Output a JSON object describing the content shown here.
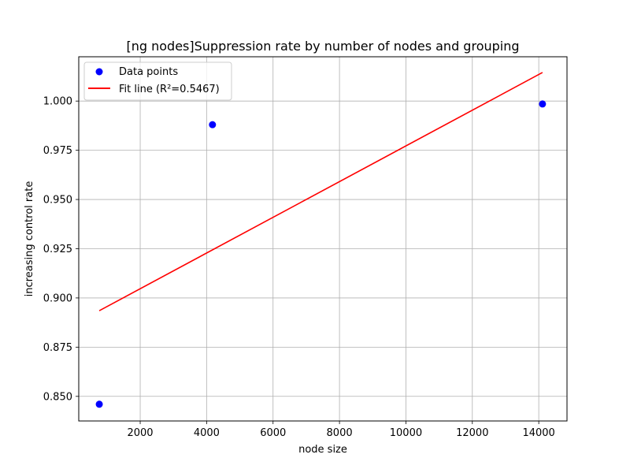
{
  "chart_data": {
    "type": "scatter",
    "title": "[ng nodes]Suppression rate by number of nodes and grouping",
    "xlabel": "node size",
    "ylabel": "increasing control rate",
    "xlim": [
      150,
      14850
    ],
    "ylim": [
      0.8375,
      1.0225
    ],
    "xticks": [
      2000,
      4000,
      6000,
      8000,
      10000,
      12000,
      14000
    ],
    "xtick_labels": [
      "2000",
      "4000",
      "6000",
      "8000",
      "10000",
      "12000",
      "14000"
    ],
    "yticks": [
      0.85,
      0.875,
      0.9,
      0.925,
      0.95,
      0.975,
      1.0
    ],
    "ytick_labels": [
      "0.850",
      "0.875",
      "0.900",
      "0.925",
      "0.950",
      "0.975",
      "1.000"
    ],
    "grid": true,
    "legend_position": "top-left",
    "series": [
      {
        "name": "Data points",
        "kind": "scatter",
        "color": "#0000ff",
        "x": [
          768,
          4176,
          14112
        ],
        "y": [
          0.846,
          0.988,
          0.9985
        ]
      },
      {
        "name": "Fit line (R²=0.5467)",
        "kind": "line",
        "color": "#ff0000",
        "x": [
          768,
          14112
        ],
        "y": [
          0.8935,
          1.0145
        ]
      }
    ]
  }
}
